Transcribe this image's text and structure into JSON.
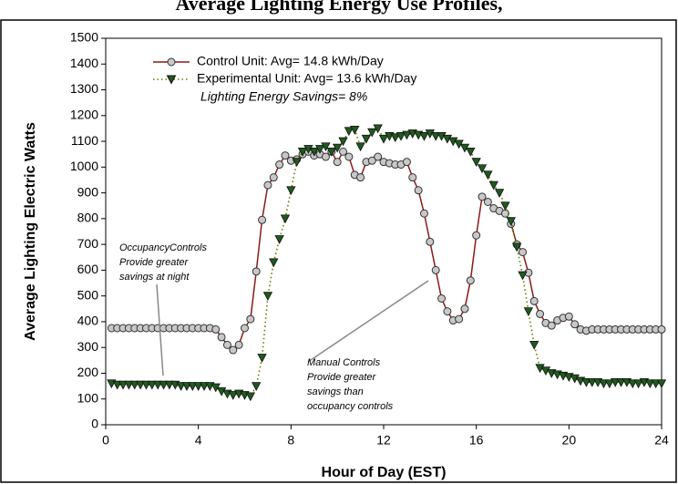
{
  "chart_data": {
    "type": "line",
    "title": "Average Lighting Energy Use Profiles,",
    "x_label": "Hour of Day (EST)",
    "y_label": "Average Lighting Electric Watts",
    "xlim": [
      0,
      24
    ],
    "xticks": [
      0,
      4,
      8,
      12,
      16,
      20,
      24
    ],
    "ylim": [
      0,
      1500
    ],
    "yticks": [
      0,
      100,
      200,
      300,
      400,
      500,
      600,
      700,
      800,
      900,
      1000,
      1100,
      1200,
      1300,
      1400,
      1500
    ],
    "x": [
      0.25,
      0.5,
      0.75,
      1,
      1.25,
      1.5,
      1.75,
      2,
      2.25,
      2.5,
      2.75,
      3,
      3.25,
      3.5,
      3.75,
      4,
      4.25,
      4.5,
      4.75,
      5,
      5.25,
      5.5,
      5.75,
      6,
      6.25,
      6.5,
      6.75,
      7,
      7.25,
      7.5,
      7.75,
      8,
      8.25,
      8.5,
      8.75,
      9,
      9.25,
      9.5,
      9.75,
      10,
      10.25,
      10.5,
      10.75,
      11,
      11.25,
      11.5,
      11.75,
      12,
      12.25,
      12.5,
      12.75,
      13,
      13.25,
      13.5,
      13.75,
      14,
      14.25,
      14.5,
      14.75,
      15,
      15.25,
      15.5,
      15.75,
      16,
      16.25,
      16.5,
      16.75,
      17,
      17.25,
      17.5,
      17.75,
      18,
      18.25,
      18.5,
      18.75,
      19,
      19.25,
      19.5,
      19.75,
      20,
      20.25,
      20.5,
      20.75,
      21,
      21.25,
      21.5,
      21.75,
      22,
      22.25,
      22.5,
      22.75,
      23,
      23.25,
      23.5,
      23.75,
      24
    ],
    "series": [
      {
        "name": "Control Unit: Avg= 14.8 kWh/Day",
        "color": "#8b1a1a",
        "marker": "circle",
        "marker_color": "#c8c8c8",
        "values": [
          375,
          375,
          375,
          375,
          375,
          375,
          375,
          375,
          375,
          375,
          375,
          375,
          375,
          375,
          375,
          375,
          375,
          375,
          370,
          340,
          310,
          290,
          310,
          375,
          410,
          595,
          795,
          930,
          960,
          1010,
          1045,
          1025,
          1030,
          1050,
          1060,
          1045,
          1050,
          1040,
          1060,
          1020,
          1060,
          1040,
          970,
          960,
          1020,
          1025,
          1040,
          1020,
          1015,
          1010,
          1010,
          1020,
          960,
          910,
          820,
          710,
          600,
          490,
          440,
          405,
          410,
          450,
          560,
          735,
          885,
          865,
          840,
          830,
          820,
          780,
          700,
          670,
          590,
          480,
          430,
          395,
          385,
          405,
          415,
          420,
          390,
          370,
          365,
          370,
          370,
          370,
          370,
          370,
          370,
          370,
          370,
          370,
          370,
          370,
          370,
          370
        ]
      },
      {
        "name": "Experimental Unit: Avg= 13.6 kWh/Day",
        "color": "#6b7a00",
        "marker": "triangle",
        "marker_color": "#1f5a1f",
        "values": [
          160,
          155,
          155,
          155,
          155,
          155,
          155,
          155,
          155,
          155,
          155,
          155,
          150,
          150,
          150,
          150,
          150,
          150,
          145,
          130,
          120,
          115,
          120,
          115,
          110,
          150,
          260,
          500,
          630,
          720,
          800,
          910,
          1020,
          1060,
          1070,
          1060,
          1070,
          1080,
          1060,
          1075,
          1100,
          1140,
          1145,
          1080,
          1110,
          1135,
          1150,
          1110,
          1120,
          1115,
          1120,
          1125,
          1130,
          1125,
          1120,
          1130,
          1120,
          1120,
          1110,
          1100,
          1090,
          1075,
          1060,
          1020,
          995,
          970,
          930,
          900,
          850,
          790,
          690,
          580,
          440,
          310,
          220,
          210,
          200,
          195,
          190,
          185,
          180,
          170,
          165,
          165,
          165,
          160,
          160,
          165,
          165,
          165,
          160,
          160,
          165,
          160,
          160,
          160
        ]
      }
    ],
    "annotations": [
      {
        "text": "Lighting Energy Savings= 8%"
      },
      {
        "lines": [
          "OccupancyControls",
          "Provide greater",
          "savings at night"
        ]
      },
      {
        "lines": [
          "Manual Controls",
          "Provide greater",
          "savings than",
          "occupancy controls"
        ]
      }
    ]
  }
}
